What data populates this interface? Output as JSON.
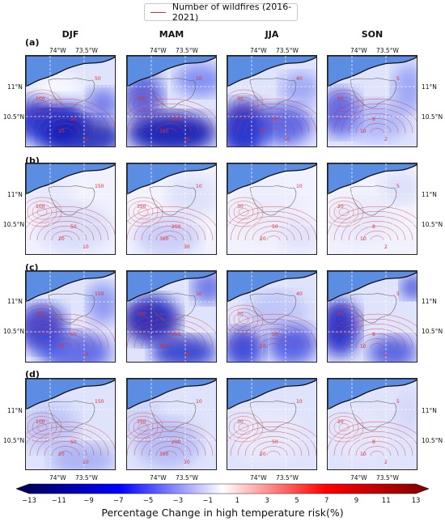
{
  "legend": {
    "label": "Number of wildfires (2016-2021)",
    "line_color": "#e03030"
  },
  "seasons": [
    "DJF",
    "MAM",
    "JJA",
    "SON"
  ],
  "rows": [
    "(a)",
    "(b)",
    "(c)",
    "(d)"
  ],
  "axis": {
    "lon_ticks": [
      "74°W",
      "73.5°W"
    ],
    "lat_ticks": [
      "11°N",
      "10.5°N"
    ]
  },
  "colorbar": {
    "label": "Percentage Change in high temperature risk(%)",
    "ticks": [
      "−13",
      "−11",
      "−9",
      "−7",
      "−5",
      "−3",
      "−1",
      "1",
      "3",
      "5",
      "7",
      "9",
      "11",
      "13"
    ],
    "min": -13,
    "max": 13,
    "colormap": "seismic"
  },
  "contour_labels": {
    "a-DJF": [
      "100",
      "10",
      "20",
      "50",
      "70"
    ],
    "a-MAM": [
      "350",
      "300",
      "200",
      "10",
      "30"
    ],
    "a-JJA": [
      "30",
      "20",
      "50",
      "40",
      "10"
    ],
    "a-SON": [
      "20",
      "10",
      "8",
      "5",
      "2"
    ],
    "b-DJF": [
      "100",
      "20",
      "50",
      "150",
      "10"
    ],
    "b-MAM": [
      "350",
      "300",
      "200",
      "10",
      "30"
    ],
    "b-JJA": [
      "30",
      "20",
      "50",
      "10"
    ],
    "b-SON": [
      "20",
      "10",
      "8",
      "5",
      "2"
    ],
    "c-DJF": [
      "100",
      "20",
      "50",
      "150",
      "10"
    ],
    "c-MAM": [
      "350",
      "300",
      "200",
      "10",
      "30"
    ],
    "c-JJA": [
      "30",
      "20",
      "50",
      "40"
    ],
    "c-SON": [
      "20",
      "10",
      "8",
      "5",
      "2"
    ],
    "d-DJF": [
      "100",
      "20",
      "50",
      "150",
      "10"
    ],
    "d-MAM": [
      "350",
      "300",
      "200",
      "10",
      "30"
    ],
    "d-JJA": [
      "30",
      "20",
      "50",
      "10"
    ],
    "d-SON": [
      "20",
      "10",
      "8",
      "5",
      "2"
    ]
  },
  "colors": {
    "sea": "#5b8de3",
    "contour": "#e03030",
    "grid": "#ffffff",
    "coast": "#111111"
  }
}
